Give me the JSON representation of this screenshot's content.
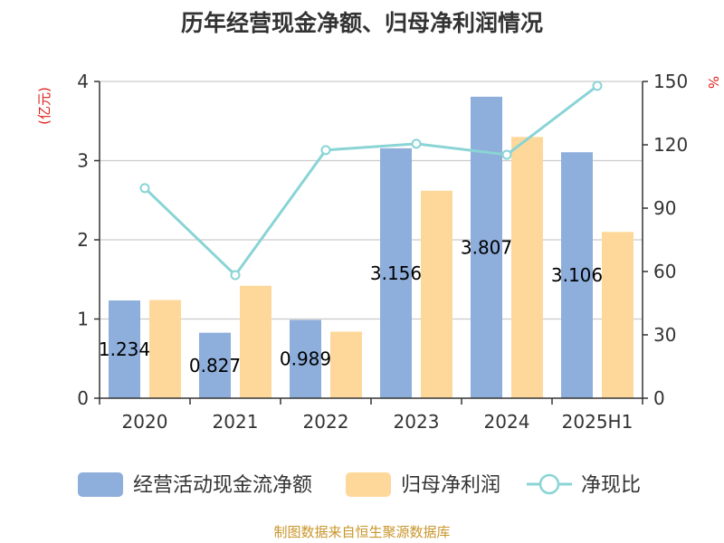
{
  "title": "历年经营现金净额、归母净利润情况",
  "source": "制图数据来自恒生聚源数据库",
  "colors": {
    "cashflow": "#8eaedb",
    "profit": "#fed89b",
    "ratio": "#8ad4d6",
    "axis": "#333333",
    "grid": "#cccccc",
    "unit": "#e0201a"
  },
  "chart_data": {
    "type": "bar",
    "categories": [
      "2020",
      "2021",
      "2022",
      "2023",
      "2024",
      "2025H1"
    ],
    "left_axis": {
      "unit": "(亿元)",
      "ylim": [
        0,
        4
      ],
      "ticks": [
        0,
        1,
        2,
        3,
        4
      ]
    },
    "right_axis": {
      "unit": "%",
      "ylim": [
        0,
        150
      ],
      "ticks": [
        0,
        30,
        60,
        90,
        120,
        150
      ]
    },
    "grid": true,
    "legend_position": "bottom",
    "series": [
      {
        "name": "经营活动现金流净额",
        "type": "bar",
        "axis": "left",
        "values": [
          1.234,
          0.827,
          0.989,
          3.156,
          3.807,
          3.106
        ],
        "labels": [
          "1.234",
          "0.827",
          "0.989",
          "3.156",
          "3.807",
          "3.106"
        ]
      },
      {
        "name": "归母净利润",
        "type": "bar",
        "axis": "left",
        "values": [
          1.24,
          1.42,
          0.84,
          2.62,
          3.3,
          2.1
        ]
      },
      {
        "name": "净现比",
        "type": "line",
        "axis": "right",
        "values": [
          99.5,
          58.3,
          117.5,
          120.5,
          115.3,
          147.9
        ]
      }
    ]
  }
}
